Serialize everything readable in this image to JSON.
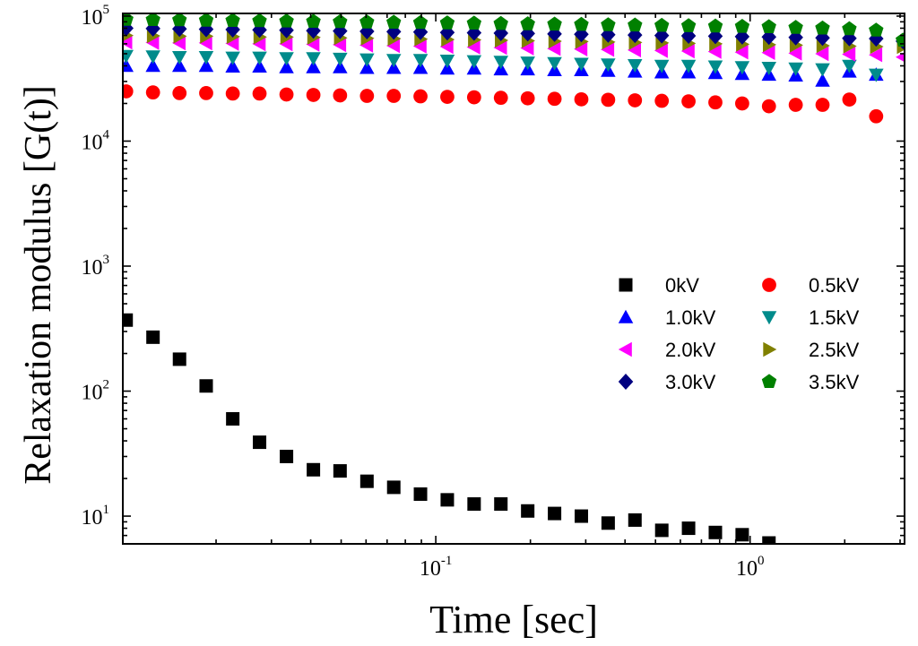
{
  "chart_data": {
    "type": "scatter",
    "title": "",
    "xlabel": "Time [sec]",
    "ylabel": "Relaxation modulus [G(t)]",
    "xscale": "log",
    "yscale": "log",
    "xlim": [
      0.0101,
      3.1
    ],
    "ylim": [
      6,
      105000
    ],
    "x_ticks": [
      {
        "value": 0.1,
        "base": "10",
        "exp": "-1"
      },
      {
        "value": 1,
        "base": "10",
        "exp": "0"
      }
    ],
    "y_ticks": [
      {
        "value": 10,
        "base": "10",
        "exp": "1"
      },
      {
        "value": 100,
        "base": "10",
        "exp": "2"
      },
      {
        "value": 1000,
        "base": "10",
        "exp": "3"
      },
      {
        "value": 10000,
        "base": "10",
        "exp": "4"
      },
      {
        "value": 100000,
        "base": "10",
        "exp": "5"
      }
    ],
    "legend_position": "center-right",
    "x": [
      0.01035,
      0.0126,
      0.0153,
      0.0186,
      0.0226,
      0.0275,
      0.0335,
      0.0408,
      0.0496,
      0.0604,
      0.0735,
      0.0894,
      0.1088,
      0.1324,
      0.1611,
      0.1961,
      0.2387,
      0.2905,
      0.3535,
      0.4302,
      0.5236,
      0.6371,
      0.7754,
      0.9436,
      1.148,
      1.397,
      1.7,
      2.069,
      2.518,
      3.064
    ],
    "series": [
      {
        "name": "0kV",
        "color": "#000000",
        "marker": "square",
        "values": [
          370,
          270,
          180,
          110,
          60,
          39,
          30,
          23.5,
          23,
          19,
          17,
          15,
          13.5,
          12.5,
          12.5,
          11,
          10.5,
          10,
          8.8,
          9.3,
          7.7,
          8,
          7.4,
          7.1,
          6.1,
          null,
          null,
          null,
          null,
          null
        ]
      },
      {
        "name": "0.5kV",
        "color": "#ff0000",
        "marker": "circle",
        "values": [
          25000,
          24500,
          24200,
          24200,
          24000,
          24000,
          23600,
          23400,
          23200,
          23000,
          23000,
          22800,
          22600,
          22400,
          22200,
          22000,
          21800,
          21600,
          21400,
          21200,
          21000,
          20800,
          20400,
          20000,
          19000,
          19500,
          19500,
          21500,
          15800,
          null
        ]
      },
      {
        "name": "1.0kV",
        "color": "#0000ff",
        "marker": "triangle-up",
        "values": [
          40000,
          40000,
          40000,
          40000,
          39500,
          39500,
          39000,
          39000,
          39000,
          38500,
          38500,
          38500,
          38000,
          38000,
          37500,
          37500,
          37000,
          37000,
          36500,
          36000,
          35500,
          35500,
          35000,
          34500,
          34000,
          33500,
          30500,
          36000,
          34000,
          null
        ]
      },
      {
        "name": "1.5kV",
        "color": "#008b8b",
        "marker": "triangle-down",
        "values": [
          48000,
          47500,
          47000,
          47000,
          46500,
          46500,
          46000,
          46000,
          45500,
          45000,
          44500,
          44500,
          44000,
          43500,
          43000,
          42500,
          42000,
          41500,
          41000,
          40500,
          40000,
          40000,
          39500,
          39000,
          38500,
          38000,
          37500,
          40000,
          34000,
          null
        ]
      },
      {
        "name": "2.0kV",
        "color": "#ff00ff",
        "marker": "triangle-left",
        "values": [
          62000,
          61500,
          61000,
          61000,
          60500,
          60000,
          60000,
          59500,
          59000,
          58500,
          58000,
          57500,
          57000,
          56500,
          56000,
          55500,
          55000,
          54500,
          54000,
          53500,
          53000,
          52500,
          52000,
          51500,
          51000,
          50500,
          50000,
          49500,
          49000,
          47000
        ]
      },
      {
        "name": "2.5kV",
        "color": "#808000",
        "marker": "triangle-right",
        "values": [
          70000,
          69500,
          69000,
          69000,
          68500,
          68000,
          68000,
          67500,
          67000,
          66500,
          66000,
          65500,
          65000,
          64500,
          64000,
          63500,
          63000,
          62500,
          62000,
          61500,
          61000,
          60500,
          60000,
          59500,
          59000,
          58500,
          58000,
          57500,
          57000,
          57000
        ]
      },
      {
        "name": "3.0kV",
        "color": "#000080",
        "marker": "diamond",
        "values": [
          80000,
          79500,
          79000,
          78500,
          78000,
          77500,
          77000,
          76500,
          76000,
          75500,
          75000,
          74500,
          74000,
          73500,
          73000,
          72500,
          72000,
          71500,
          71000,
          70500,
          70000,
          69500,
          69000,
          68500,
          68000,
          67500,
          67000,
          66500,
          66000,
          63000
        ]
      },
      {
        "name": "3.5kV",
        "color": "#008000",
        "marker": "pentagon",
        "values": [
          94000,
          93500,
          93000,
          92500,
          92000,
          91500,
          91000,
          90500,
          90000,
          89500,
          89000,
          88500,
          88000,
          87500,
          87000,
          86500,
          86000,
          85500,
          85000,
          84500,
          84000,
          83500,
          83000,
          82500,
          82000,
          81000,
          80000,
          79000,
          77000,
          64000
        ]
      }
    ]
  }
}
